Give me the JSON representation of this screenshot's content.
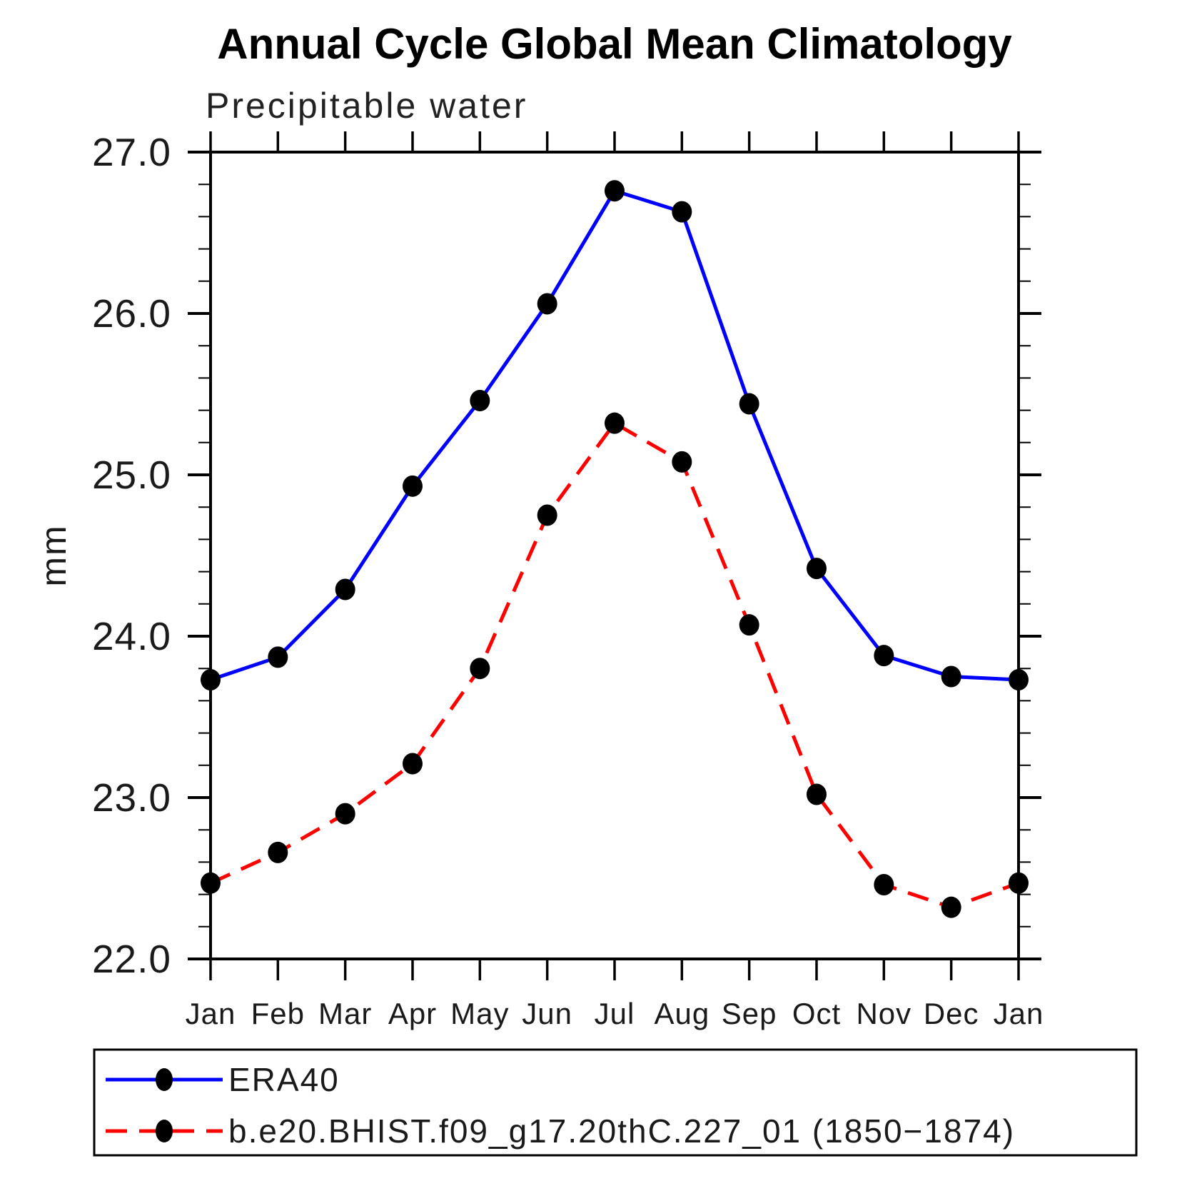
{
  "page": {
    "background_color": "#ffffff"
  },
  "chart_data": {
    "type": "line",
    "title": "Annual Cycle Global Mean Climatology",
    "subtitle": "Precipitable water",
    "xlabel": "",
    "ylabel": "mm",
    "x_categories": [
      "Jan",
      "Feb",
      "Mar",
      "Apr",
      "May",
      "Jun",
      "Jul",
      "Aug",
      "Sep",
      "Oct",
      "Nov",
      "Dec",
      "Jan"
    ],
    "ylim": [
      22.0,
      27.0
    ],
    "y_major_ticks": [
      22.0,
      23.0,
      24.0,
      25.0,
      26.0,
      27.0
    ],
    "y_tick_labels": [
      "22.0",
      "23.0",
      "24.0",
      "25.0",
      "26.0",
      "27.0"
    ],
    "y_minor_step": 0.2,
    "grid": false,
    "legend_position": "bottom",
    "axis_color": "#000000",
    "marker_shape": "filled-circle",
    "marker_color": "#000000",
    "series": [
      {
        "name": "ERA40",
        "color": "#0000ff",
        "line_style": "solid",
        "values": [
          23.73,
          23.87,
          24.29,
          24.93,
          25.46,
          26.06,
          26.76,
          26.63,
          25.44,
          24.42,
          23.88,
          23.75,
          23.73
        ]
      },
      {
        "name": "b.e20.BHIST.f09_g17.20thC.227_01 (1850−1874)",
        "color": "#ff0000",
        "line_style": "dashed",
        "values": [
          22.47,
          22.66,
          22.9,
          23.21,
          23.8,
          24.75,
          25.32,
          25.08,
          24.07,
          23.02,
          22.46,
          22.32,
          22.47
        ]
      }
    ]
  }
}
